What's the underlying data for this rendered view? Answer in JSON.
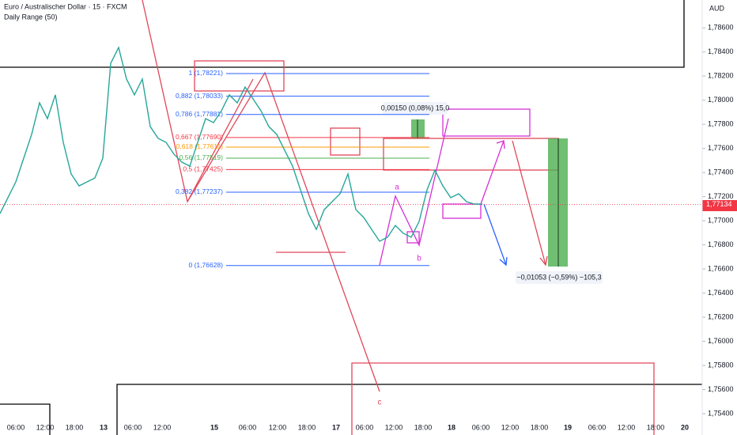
{
  "chart_data": {
    "type": "line",
    "title": "Euro / Australischer Dollar · 15 · FXCM",
    "subtitle": "Daily Range (50)",
    "y_axis_label": "AUD",
    "color": "#26a69a",
    "values": [
      1.7706,
      1.77191,
      1.77322,
      1.77519,
      1.77716,
      1.77978,
      1.77847,
      1.78044,
      1.7765,
      1.77388,
      1.77289,
      1.77322,
      1.77355,
      1.77519,
      1.78306,
      1.78437,
      1.78175,
      1.78044,
      1.78175,
      1.77781,
      1.77683,
      1.7765,
      1.77552,
      1.77486,
      1.77453,
      1.7765,
      1.77847,
      1.77814,
      1.77912,
      1.78044,
      1.77978,
      1.78109,
      1.78011,
      1.77912,
      1.77781,
      1.77716,
      1.77584,
      1.77453,
      1.77256,
      1.7706,
      1.76928,
      1.77092,
      1.77158,
      1.77224,
      1.77388,
      1.77092,
      1.77027,
      1.76928,
      1.7683,
      1.76863,
      1.76961,
      1.76896,
      1.76863,
      1.76994,
      1.77256,
      1.7742,
      1.77289,
      1.77191,
      1.77224,
      1.77158,
      1.77138,
      1.77138
    ],
    "x_labels": [
      "06:00",
      "12:00",
      "18:00",
      "13",
      "06:00",
      "12:00",
      "15",
      "06:00",
      "12:00",
      "18:00",
      "17",
      "06:00",
      "12:00",
      "18:00",
      "18",
      "06:00",
      "12:00",
      "18:00",
      "19",
      "06:00",
      "12:00",
      "18:00",
      "20"
    ],
    "ylim": [
      1.75354,
      1.78831
    ],
    "yticks": [
      {
        "value": 1.754,
        "label": "1,75400"
      },
      {
        "value": 1.756,
        "label": "1,75600"
      },
      {
        "value": 1.758,
        "label": "1,75800"
      },
      {
        "value": 1.76,
        "label": "1,76000"
      },
      {
        "value": 1.762,
        "label": "1,76200"
      },
      {
        "value": 1.764,
        "label": "1,76400"
      },
      {
        "value": 1.766,
        "label": "1,76600"
      },
      {
        "value": 1.768,
        "label": "1,76800"
      },
      {
        "value": 1.77,
        "label": "1,77000"
      },
      {
        "value": 1.772,
        "label": "1,77200"
      },
      {
        "value": 1.774,
        "label": "1,77400"
      },
      {
        "value": 1.776,
        "label": "1,77600"
      },
      {
        "value": 1.778,
        "label": "1,77800"
      },
      {
        "value": 1.78,
        "label": "1,78000"
      },
      {
        "value": 1.782,
        "label": "1,78200"
      },
      {
        "value": 1.784,
        "label": "1,78400"
      },
      {
        "value": 1.786,
        "label": "1,78600"
      }
    ],
    "last_price": {
      "value": 1.77134,
      "label": "1,77134"
    },
    "fib_levels": [
      {
        "value": 1.78221,
        "label": "1 (1,78221)",
        "color": "#2962ff"
      },
      {
        "value": 1.78033,
        "label": "0,882 (1,78033)",
        "color": "#2962ff"
      },
      {
        "value": 1.77881,
        "label": "0,786 (1,77881)",
        "color": "#2962ff"
      },
      {
        "value": 1.7769,
        "label": "0,667 (1,77690)",
        "color": "#f23645"
      },
      {
        "value": 1.77611,
        "label": "0,618 (1,77611)",
        "color": "#ff9800"
      },
      {
        "value": 1.77519,
        "label": "0,56 (1,77519)",
        "color": "#4caf50"
      },
      {
        "value": 1.77425,
        "label": "0,5 (1,77425)",
        "color": "#f23645"
      },
      {
        "value": 1.77237,
        "label": "0,382 (1,77237)",
        "color": "#2962ff"
      },
      {
        "value": 1.76628,
        "label": "0 (1,76628)",
        "color": "#2962ff"
      }
    ],
    "annotations": {
      "measure_up": "0,00150 (0,08%) 15,0",
      "measure_down": "−0,01053 (−0,59%) −105,3",
      "wave_a": "a",
      "wave_b": "b",
      "wave_c": "c"
    }
  }
}
